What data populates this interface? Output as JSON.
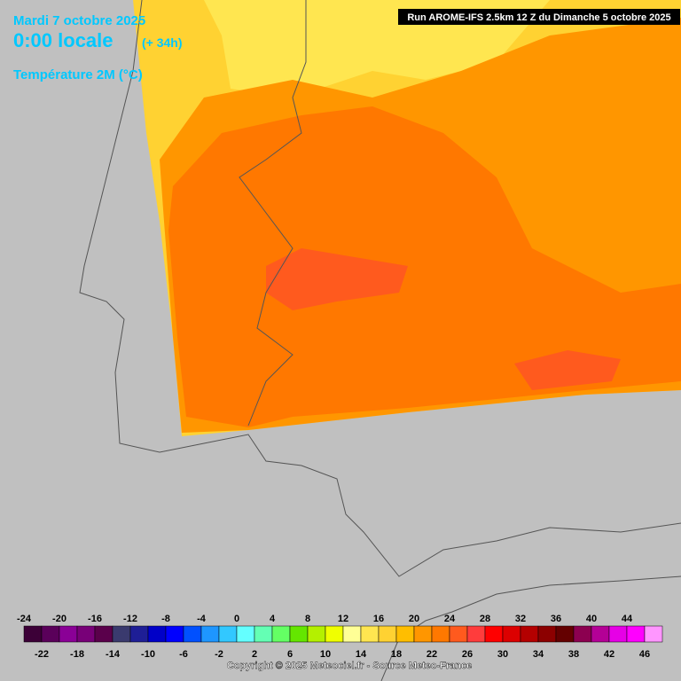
{
  "header": {
    "date": "Mardi 7 octobre 2025",
    "time": "0:00 locale",
    "lead": "(+ 34h)",
    "variable": "Température 2M (°C)",
    "run": "Run AROME-IFS 2.5km 12 Z du Dimanche 5 octobre 2025"
  },
  "legend": {
    "values": [
      -24,
      -22,
      -20,
      -18,
      -16,
      -14,
      -12,
      -10,
      -8,
      -6,
      -4,
      -2,
      0,
      2,
      4,
      6,
      8,
      10,
      12,
      14,
      16,
      18,
      20,
      22,
      24,
      26,
      28,
      30,
      32,
      34,
      36,
      38,
      40,
      42,
      44,
      46
    ],
    "colors": [
      "#3c0037",
      "#5a005a",
      "#8a0096",
      "#780078",
      "#5a004b",
      "#3a3a6e",
      "#1e1e96",
      "#0000c8",
      "#0000ff",
      "#0050ff",
      "#1e96ff",
      "#32c8ff",
      "#64ffff",
      "#64ffb4",
      "#64ff64",
      "#64e600",
      "#b4f000",
      "#f0ff00",
      "#ffff96",
      "#ffe650",
      "#ffd232",
      "#ffbe00",
      "#ff9600",
      "#ff7800",
      "#ff5a1e",
      "#ff3c3c",
      "#ff0000",
      "#dc0000",
      "#b40000",
      "#8c0000",
      "#640000",
      "#8c0050",
      "#b40096",
      "#e600e6",
      "#ff00ff",
      "#ff96ff"
    ]
  },
  "footer": {
    "copyright": "Copyright © 2025 Meteociel.fr - Source Meteo-France"
  }
}
